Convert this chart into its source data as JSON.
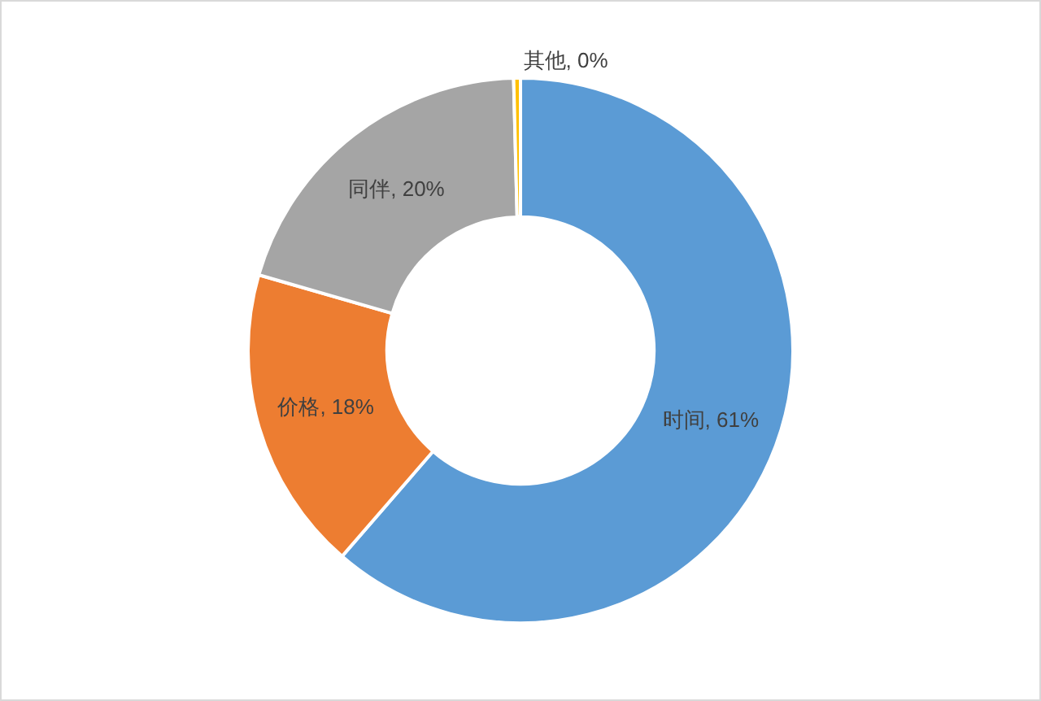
{
  "chart_data": {
    "type": "donut",
    "categories": [
      "时间",
      "价格",
      "同伴",
      "其他"
    ],
    "values": [
      61,
      18,
      20,
      0.4
    ],
    "colors": [
      "#5b9bd5",
      "#ed7d31",
      "#a5a5a5",
      "#ffc000"
    ],
    "value_labels": [
      "61%",
      "18%",
      "20%",
      "0%"
    ]
  }
}
